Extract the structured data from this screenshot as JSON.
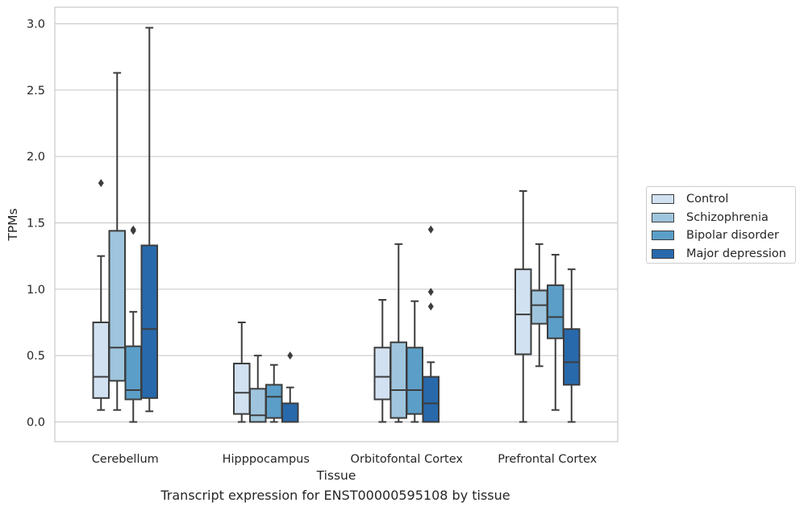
{
  "chart_data": {
    "type": "box",
    "xlabel": "Tissue",
    "ylabel": "TPMs",
    "ylim": [
      -0.14,
      3.13
    ],
    "yticks": [
      "0.0",
      "0.5",
      "1.0",
      "1.5",
      "2.0",
      "2.5",
      "3.0"
    ],
    "grid": "horizontal",
    "legend_position": "right",
    "categories": [
      "Cerebellum",
      "Hipppocampus",
      "Orbitofontal Cortex",
      "Prefrontal Cortex"
    ],
    "series": [
      {
        "name": "Control",
        "color": "#d1e1f1",
        "boxes": [
          {
            "whisker_low": 0.09,
            "q1": 0.18,
            "median": 0.34,
            "q3": 0.75,
            "whisker_high": 1.25,
            "outliers": [
              1.8
            ]
          },
          {
            "whisker_low": 0.0,
            "q1": 0.06,
            "median": 0.22,
            "q3": 0.44,
            "whisker_high": 0.75,
            "outliers": []
          },
          {
            "whisker_low": 0.0,
            "q1": 0.17,
            "median": 0.34,
            "q3": 0.56,
            "whisker_high": 0.92,
            "outliers": []
          },
          {
            "whisker_low": 0.0,
            "q1": 0.51,
            "median": 0.81,
            "q3": 1.15,
            "whisker_high": 1.74,
            "outliers": []
          }
        ]
      },
      {
        "name": "Schizophrenia",
        "color": "#9ec5dd",
        "boxes": [
          {
            "whisker_low": 0.09,
            "q1": 0.31,
            "median": 0.56,
            "q3": 1.44,
            "whisker_high": 2.63,
            "outliers": []
          },
          {
            "whisker_low": 0.0,
            "q1": 0.0,
            "median": 0.05,
            "q3": 0.25,
            "whisker_high": 0.5,
            "outliers": []
          },
          {
            "whisker_low": 0.0,
            "q1": 0.03,
            "median": 0.24,
            "q3": 0.6,
            "whisker_high": 1.34,
            "outliers": []
          },
          {
            "whisker_low": 0.42,
            "q1": 0.74,
            "median": 0.88,
            "q3": 0.99,
            "whisker_high": 1.34,
            "outliers": []
          }
        ]
      },
      {
        "name": "Bipolar disorder",
        "color": "#5b9ec8",
        "boxes": [
          {
            "whisker_low": 0.0,
            "q1": 0.17,
            "median": 0.24,
            "q3": 0.57,
            "whisker_high": 0.83,
            "outliers": [
              1.44,
              1.45
            ]
          },
          {
            "whisker_low": 0.0,
            "q1": 0.03,
            "median": 0.19,
            "q3": 0.28,
            "whisker_high": 0.43,
            "outliers": []
          },
          {
            "whisker_low": 0.0,
            "q1": 0.06,
            "median": 0.24,
            "q3": 0.56,
            "whisker_high": 0.91,
            "outliers": []
          },
          {
            "whisker_low": 0.09,
            "q1": 0.63,
            "median": 0.79,
            "q3": 1.03,
            "whisker_high": 1.26,
            "outliers": []
          }
        ]
      },
      {
        "name": "Major depression",
        "color": "#2869ac",
        "boxes": [
          {
            "whisker_low": 0.08,
            "q1": 0.18,
            "median": 0.7,
            "q3": 1.33,
            "whisker_high": 2.97,
            "outliers": []
          },
          {
            "whisker_low": 0.0,
            "q1": 0.0,
            "median": 0.0,
            "q3": 0.14,
            "whisker_high": 0.26,
            "outliers": [
              0.5
            ]
          },
          {
            "whisker_low": 0.0,
            "q1": 0.0,
            "median": 0.14,
            "q3": 0.34,
            "whisker_high": 0.45,
            "outliers": [
              0.87,
              0.98,
              1.45
            ]
          },
          {
            "whisker_low": 0.0,
            "q1": 0.28,
            "median": 0.45,
            "q3": 0.7,
            "whisker_high": 1.15,
            "outliers": []
          }
        ]
      }
    ]
  },
  "caption": "Transcript expression for ENST00000595108 by tissue"
}
